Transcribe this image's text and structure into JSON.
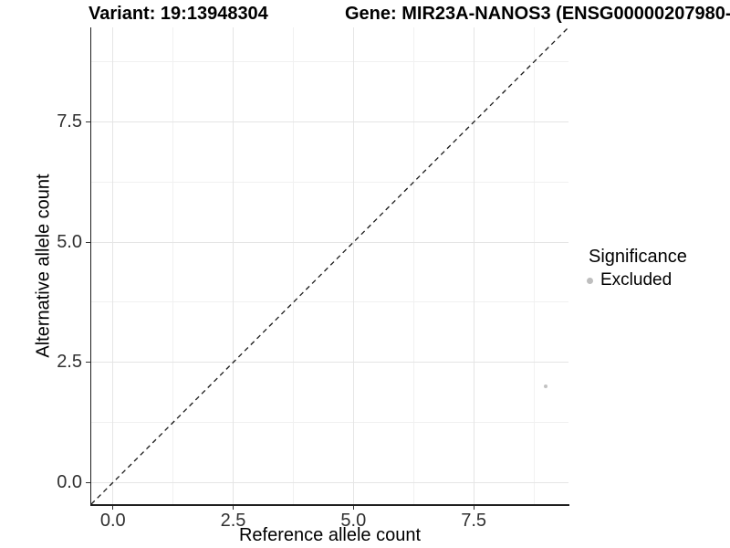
{
  "chart_data": {
    "type": "scatter",
    "titles": {
      "left": "Variant: 19:13948304",
      "right": "Gene: MIR23A-NANOS3 (ENSG00000207980-"
    },
    "xlabel": "Reference allele count",
    "ylabel": "Alternative allele count",
    "x_tick_labels": [
      "0.0",
      "2.5",
      "5.0",
      "7.5"
    ],
    "x_tick_values": [
      0,
      2.5,
      5,
      7.5
    ],
    "y_tick_labels": [
      "0.0",
      "2.5",
      "5.0",
      "7.5"
    ],
    "y_tick_values": [
      0,
      2.5,
      5,
      7.5
    ],
    "x_minor_ticks": [
      1.25,
      3.75,
      6.25,
      8.75
    ],
    "y_minor_ticks": [
      1.25,
      3.75,
      6.25,
      8.75
    ],
    "xlim": [
      -0.45,
      9.47
    ],
    "ylim": [
      -0.45,
      9.47
    ],
    "grid": "major+minor",
    "points": [
      {
        "x": 9,
        "y": 2,
        "significance": "Excluded"
      }
    ],
    "identity_line": {
      "type": "y=x",
      "style": "dashed",
      "color": "#1a1a1a"
    },
    "legend": {
      "title": "Significance",
      "position": "right",
      "items": [
        {
          "label": "Excluded",
          "color": "#bebebe"
        }
      ]
    },
    "colors": {
      "point": "#c2c2c2",
      "grid_major": "#e5e5e5",
      "grid_minor": "#f1f1f1",
      "axis_line": "#1f1f1f",
      "tick_label": "#303030",
      "title": "#000000"
    }
  }
}
